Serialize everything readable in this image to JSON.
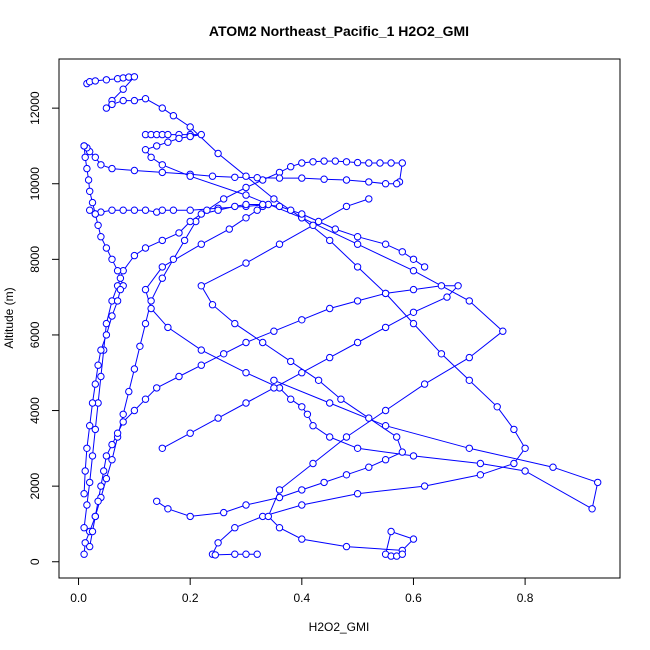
{
  "chart_data": {
    "type": "scatter",
    "title": "ATOM2 Northeast_Pacific_1 H2O2_GMI",
    "xlabel": "H2O2_GMI",
    "ylabel": "Altitude (m)",
    "xlim": [
      -0.035,
      0.97
    ],
    "ylim": [
      -430,
      13300
    ],
    "xticks": [
      0,
      0.2,
      0.4,
      0.6,
      0.8
    ],
    "xtick_labels": [
      "0.0",
      "0.2",
      "0.4",
      "0.6",
      "0.8"
    ],
    "yticks": [
      0,
      2000,
      4000,
      6000,
      8000,
      10000,
      12000
    ],
    "ytick_labels": [
      "0",
      "2000",
      "4000",
      "6000",
      "8000",
      "10000",
      "12000"
    ],
    "grid": false,
    "series_style": "points connected by lines",
    "color": "#0000ff",
    "series": [
      {
        "x": [
          0.01,
          0.012,
          0.02,
          0.03,
          0.04,
          0.05,
          0.06,
          0.07,
          0.08,
          0.09,
          0.1,
          0.11,
          0.12,
          0.13,
          0.15,
          0.17,
          0.19,
          0.21,
          0.23,
          0.26,
          0.3,
          0.33,
          0.36,
          0.38,
          0.4,
          0.42,
          0.44,
          0.46,
          0.48,
          0.5,
          0.52,
          0.54,
          0.56,
          0.58,
          0.575,
          0.57,
          0.55,
          0.52,
          0.48,
          0.44,
          0.4,
          0.36,
          0.32,
          0.28,
          0.24,
          0.2,
          0.15,
          0.1,
          0.06,
          0.04,
          0.03,
          0.02,
          0.015,
          0.01
        ],
        "y": [
          200,
          500,
          800,
          1200,
          1700,
          2200,
          2700,
          3300,
          3900,
          4500,
          5100,
          5700,
          6300,
          6900,
          7500,
          8000,
          8500,
          9000,
          9300,
          9600,
          9900,
          10100,
          10300,
          10450,
          10550,
          10580,
          10600,
          10600,
          10580,
          10560,
          10550,
          10550,
          10550,
          10550,
          10050,
          10000,
          10000,
          10050,
          10100,
          10120,
          10150,
          10150,
          10160,
          10170,
          10200,
          10250,
          10300,
          10350,
          10400,
          10500,
          10700,
          10850,
          10950,
          11000
        ]
      },
      {
        "x": [
          0.015,
          0.02,
          0.03,
          0.05,
          0.07,
          0.08,
          0.09,
          0.1,
          0.08,
          0.06,
          0.05,
          0.06,
          0.08,
          0.1,
          0.12,
          0.15,
          0.17,
          0.2,
          0.25,
          0.3,
          0.35,
          0.4,
          0.45,
          0.5,
          0.55,
          0.6,
          0.65,
          0.7,
          0.75,
          0.78,
          0.8,
          0.78,
          0.72,
          0.62,
          0.5,
          0.4,
          0.33,
          0.28,
          0.25,
          0.24,
          0.245,
          0.28,
          0.3,
          0.32
        ],
        "y": [
          12650,
          12700,
          12720,
          12750,
          12780,
          12800,
          12820,
          12830,
          12500,
          12200,
          12000,
          12100,
          12200,
          12200,
          12250,
          12000,
          11800,
          11500,
          10800,
          10200,
          9600,
          9100,
          8500,
          7800,
          7100,
          6300,
          5500,
          4800,
          4100,
          3500,
          3000,
          2600,
          2300,
          2000,
          1800,
          1500,
          1200,
          900,
          500,
          200,
          180,
          200,
          200,
          200
        ]
      },
      {
        "x": [
          0.12,
          0.13,
          0.14,
          0.15,
          0.16,
          0.18,
          0.2,
          0.22,
          0.2,
          0.18,
          0.16,
          0.14,
          0.12,
          0.13,
          0.15,
          0.2,
          0.3,
          0.4,
          0.5,
          0.6,
          0.7,
          0.76,
          0.7,
          0.62,
          0.55,
          0.48,
          0.42,
          0.36,
          0.34,
          0.36,
          0.4,
          0.48,
          0.58,
          0.6,
          0.56,
          0.55,
          0.56,
          0.57,
          0.58
        ],
        "y": [
          11300,
          11300,
          11300,
          11300,
          11300,
          11300,
          11300,
          11300,
          11250,
          11200,
          11100,
          11000,
          10900,
          10700,
          10500,
          10200,
          9700,
          9100,
          8400,
          7700,
          6900,
          6100,
          5400,
          4700,
          4000,
          3300,
          2600,
          1900,
          1200,
          900,
          600,
          400,
          300,
          600,
          800,
          200,
          150,
          150,
          200
        ]
      },
      {
        "x": [
          0.02,
          0.03,
          0.04,
          0.06,
          0.08,
          0.1,
          0.12,
          0.14,
          0.15,
          0.17,
          0.2,
          0.25,
          0.3,
          0.34,
          0.33,
          0.32,
          0.3,
          0.27,
          0.22,
          0.15,
          0.12,
          0.13,
          0.16,
          0.22,
          0.3,
          0.36,
          0.38,
          0.4,
          0.41,
          0.42,
          0.45,
          0.5,
          0.6,
          0.72,
          0.8,
          0.92,
          0.93,
          0.85,
          0.7,
          0.55,
          0.45,
          0.35
        ],
        "y": [
          9300,
          9200,
          9250,
          9300,
          9300,
          9300,
          9300,
          9250,
          9300,
          9300,
          9300,
          9350,
          9400,
          9450,
          9400,
          9300,
          9100,
          8800,
          8400,
          7800,
          7200,
          6700,
          6200,
          5600,
          5000,
          4600,
          4300,
          4100,
          3900,
          3600,
          3300,
          3000,
          2800,
          2600,
          2400,
          1400,
          2100,
          2500,
          3000,
          3600,
          4200,
          4800
        ]
      },
      {
        "x": [
          0.01,
          0.015,
          0.02,
          0.025,
          0.03,
          0.035,
          0.04,
          0.045,
          0.05,
          0.06,
          0.07,
          0.08,
          0.1,
          0.12,
          0.15,
          0.18,
          0.2,
          0.22,
          0.25,
          0.28,
          0.3,
          0.33,
          0.36,
          0.38,
          0.4,
          0.43,
          0.46,
          0.5,
          0.55,
          0.58,
          0.6,
          0.62
        ],
        "y": [
          900,
          1500,
          2100,
          2800,
          3500,
          4200,
          4900,
          5600,
          6300,
          6900,
          7300,
          7700,
          8100,
          8300,
          8500,
          8700,
          9000,
          9200,
          9300,
          9400,
          9450,
          9450,
          9400,
          9300,
          9200,
          9000,
          8800,
          8600,
          8400,
          8200,
          8000,
          7800
        ]
      },
      {
        "x": [
          0.02,
          0.025,
          0.03,
          0.035,
          0.04,
          0.045,
          0.05,
          0.06,
          0.07,
          0.08,
          0.1,
          0.12,
          0.14,
          0.18,
          0.22,
          0.26,
          0.3,
          0.35,
          0.4,
          0.45,
          0.5,
          0.55,
          0.6,
          0.65,
          0.68,
          0.66,
          0.6,
          0.55,
          0.5,
          0.45,
          0.4,
          0.35,
          0.3,
          0.25,
          0.2,
          0.15
        ],
        "y": [
          400,
          800,
          1200,
          1600,
          2000,
          2400,
          2800,
          3100,
          3400,
          3700,
          4000,
          4300,
          4600,
          4900,
          5200,
          5500,
          5800,
          6100,
          6400,
          6700,
          6900,
          7100,
          7200,
          7300,
          7300,
          7000,
          6600,
          6200,
          5800,
          5400,
          5000,
          4600,
          4200,
          3800,
          3400,
          3000
        ]
      },
      {
        "x": [
          0.01,
          0.012,
          0.015,
          0.018,
          0.02,
          0.025,
          0.03,
          0.035,
          0.04,
          0.05,
          0.06,
          0.07,
          0.075,
          0.08,
          0.075,
          0.07,
          0.06,
          0.05,
          0.04,
          0.035,
          0.03,
          0.025,
          0.02,
          0.015,
          0.012,
          0.01
        ],
        "y": [
          11000,
          10700,
          10400,
          10100,
          9800,
          9500,
          9200,
          8900,
          8600,
          8300,
          8000,
          7700,
          7500,
          7300,
          7200,
          6900,
          6500,
          6000,
          5600,
          5200,
          4700,
          4200,
          3600,
          3000,
          2400,
          1800
        ]
      },
      {
        "x": [
          0.14,
          0.16,
          0.2,
          0.26,
          0.3,
          0.36,
          0.4,
          0.44,
          0.48,
          0.52,
          0.55,
          0.58,
          0.57,
          0.52,
          0.47,
          0.43,
          0.38,
          0.33,
          0.28,
          0.24,
          0.22,
          0.3,
          0.36,
          0.42,
          0.48,
          0.52
        ],
        "y": [
          1600,
          1400,
          1200,
          1300,
          1500,
          1700,
          1900,
          2100,
          2300,
          2500,
          2700,
          2900,
          3300,
          3800,
          4300,
          4800,
          5300,
          5800,
          6300,
          6800,
          7300,
          7900,
          8400,
          8900,
          9400,
          9600
        ]
      }
    ]
  }
}
